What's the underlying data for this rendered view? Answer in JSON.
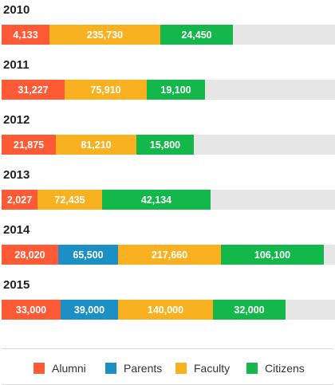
{
  "chart_data": {
    "type": "bar",
    "orientation": "horizontal",
    "stacked": true,
    "title": "",
    "xlabel": "",
    "ylabel": "",
    "categories": [
      "2010",
      "2011",
      "2012",
      "2013",
      "2014",
      "2015"
    ],
    "series": [
      {
        "name": "Alumni",
        "color": "#ff5a36",
        "values": [
          4133,
          31227,
          21875,
          2027,
          28020,
          33000
        ],
        "labels": [
          "4,133",
          "31,227",
          "21,875",
          "2,027",
          "28,020",
          "33,000"
        ]
      },
      {
        "name": "Parents",
        "color": "#1c8fc4",
        "values": [
          null,
          null,
          null,
          null,
          65500,
          39000
        ],
        "labels": [
          "",
          "",
          "",
          "",
          "65,500",
          "39,000"
        ]
      },
      {
        "name": "Faculty",
        "color": "#f9b122",
        "values": [
          235730,
          75910,
          81210,
          72435,
          217660,
          140000
        ],
        "labels": [
          "235,730",
          "75,910",
          "81,210",
          "72,435",
          "217,660",
          "140,000"
        ]
      },
      {
        "name": "Citizens",
        "color": "#14b84a",
        "values": [
          24450,
          19100,
          15800,
          42134,
          106100,
          32000
        ],
        "labels": [
          "24,450",
          "19,100",
          "15,800",
          "42,134",
          "106,100",
          "32,000"
        ]
      }
    ],
    "legend_position": "bottom",
    "grid": false
  }
}
